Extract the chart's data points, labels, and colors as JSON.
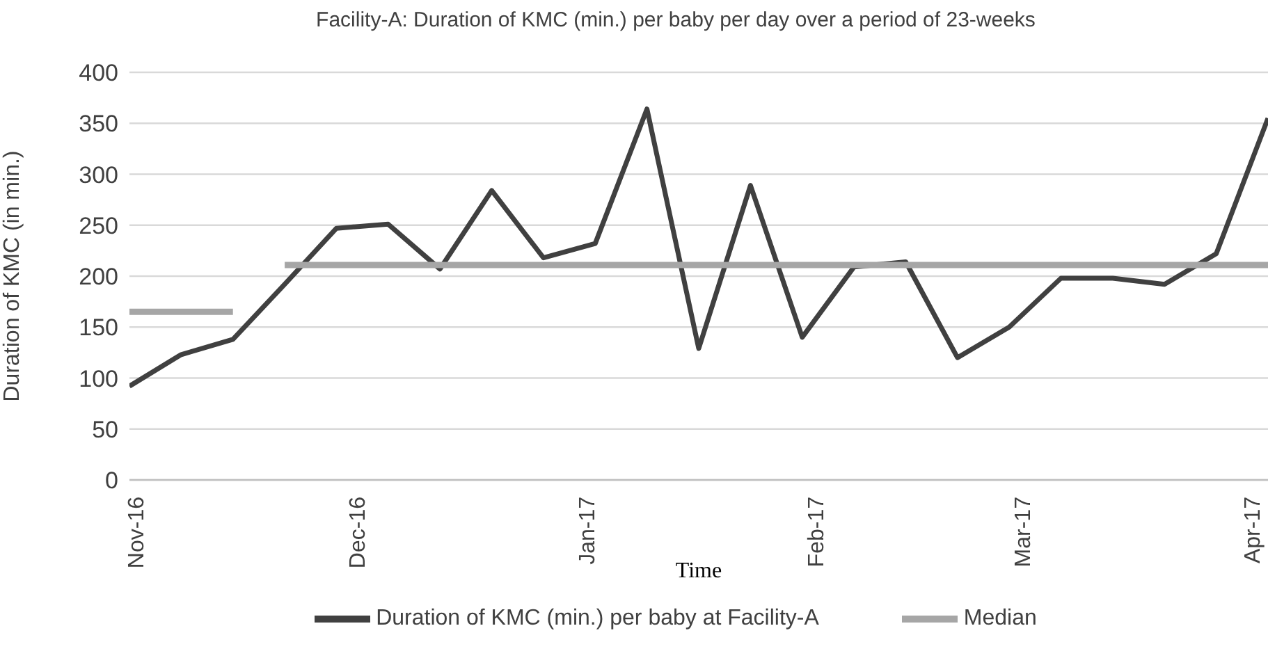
{
  "chart_data": {
    "type": "line",
    "title": "Facility-A: Duration of KMC (min.) per baby per day over a period of 23-weeks",
    "xlabel": "Time",
    "ylabel": "Duration of KMC (in min.)",
    "x": [
      "2016-10-31",
      "2016-11-07",
      "2016-11-14",
      "2016-11-21",
      "2016-11-28",
      "2016-12-05",
      "2016-12-12",
      "2016-12-19",
      "2016-12-26",
      "2017-01-02",
      "2017-01-09",
      "2017-01-16",
      "2017-01-23",
      "2017-01-30",
      "2017-02-06",
      "2017-02-13",
      "2017-02-20",
      "2017-02-27",
      "2017-03-06",
      "2017-03-13",
      "2017-03-20",
      "2017-03-27",
      "2017-04-03"
    ],
    "series": [
      {
        "name": "Duration of KMC (min.) per baby at Facility-A",
        "color": "#404040",
        "values": [
          92,
          123,
          138,
          192,
          247,
          251,
          207,
          284,
          218,
          232,
          364,
          129,
          289,
          140,
          209,
          214,
          120,
          150,
          198,
          198,
          192,
          222,
          355
        ]
      },
      {
        "name": "Median",
        "color": "#a6a6a6",
        "x": [
          "2016-10-31",
          "2016-11-07",
          "2016-11-14",
          "2016-11-17",
          "2016-11-21",
          "2016-11-28",
          "2016-12-05",
          "2016-12-12",
          "2016-12-19",
          "2016-12-26",
          "2017-01-02",
          "2017-01-09",
          "2017-01-16",
          "2017-01-23",
          "2017-01-30",
          "2017-02-06",
          "2017-02-13",
          "2017-02-20",
          "2017-02-27",
          "2017-03-06",
          "2017-03-13",
          "2017-03-20",
          "2017-03-27",
          "2017-04-03"
        ],
        "values": [
          165,
          165,
          165,
          null,
          211,
          211,
          211,
          211,
          211,
          211,
          211,
          211,
          211,
          211,
          211,
          211,
          211,
          211,
          211,
          211,
          211,
          211,
          211,
          211
        ]
      }
    ],
    "xlim": [
      "2016-10-31",
      "2017-04-03"
    ],
    "xticks": [
      {
        "value": "2016-11-01",
        "label": "Nov-16"
      },
      {
        "value": "2016-12-01",
        "label": "Dec-16"
      },
      {
        "value": "2017-01-01",
        "label": "Jan-17"
      },
      {
        "value": "2017-02-01",
        "label": "Feb-17"
      },
      {
        "value": "2017-03-01",
        "label": "Mar-17"
      },
      {
        "value": "2017-04-01",
        "label": "Apr-17"
      }
    ],
    "ylim": [
      0,
      400
    ],
    "yticks": [
      0,
      50,
      100,
      150,
      200,
      250,
      300,
      350,
      400
    ],
    "grid": "y",
    "legend": "bottom",
    "marker": "none",
    "line_style": "solid"
  }
}
